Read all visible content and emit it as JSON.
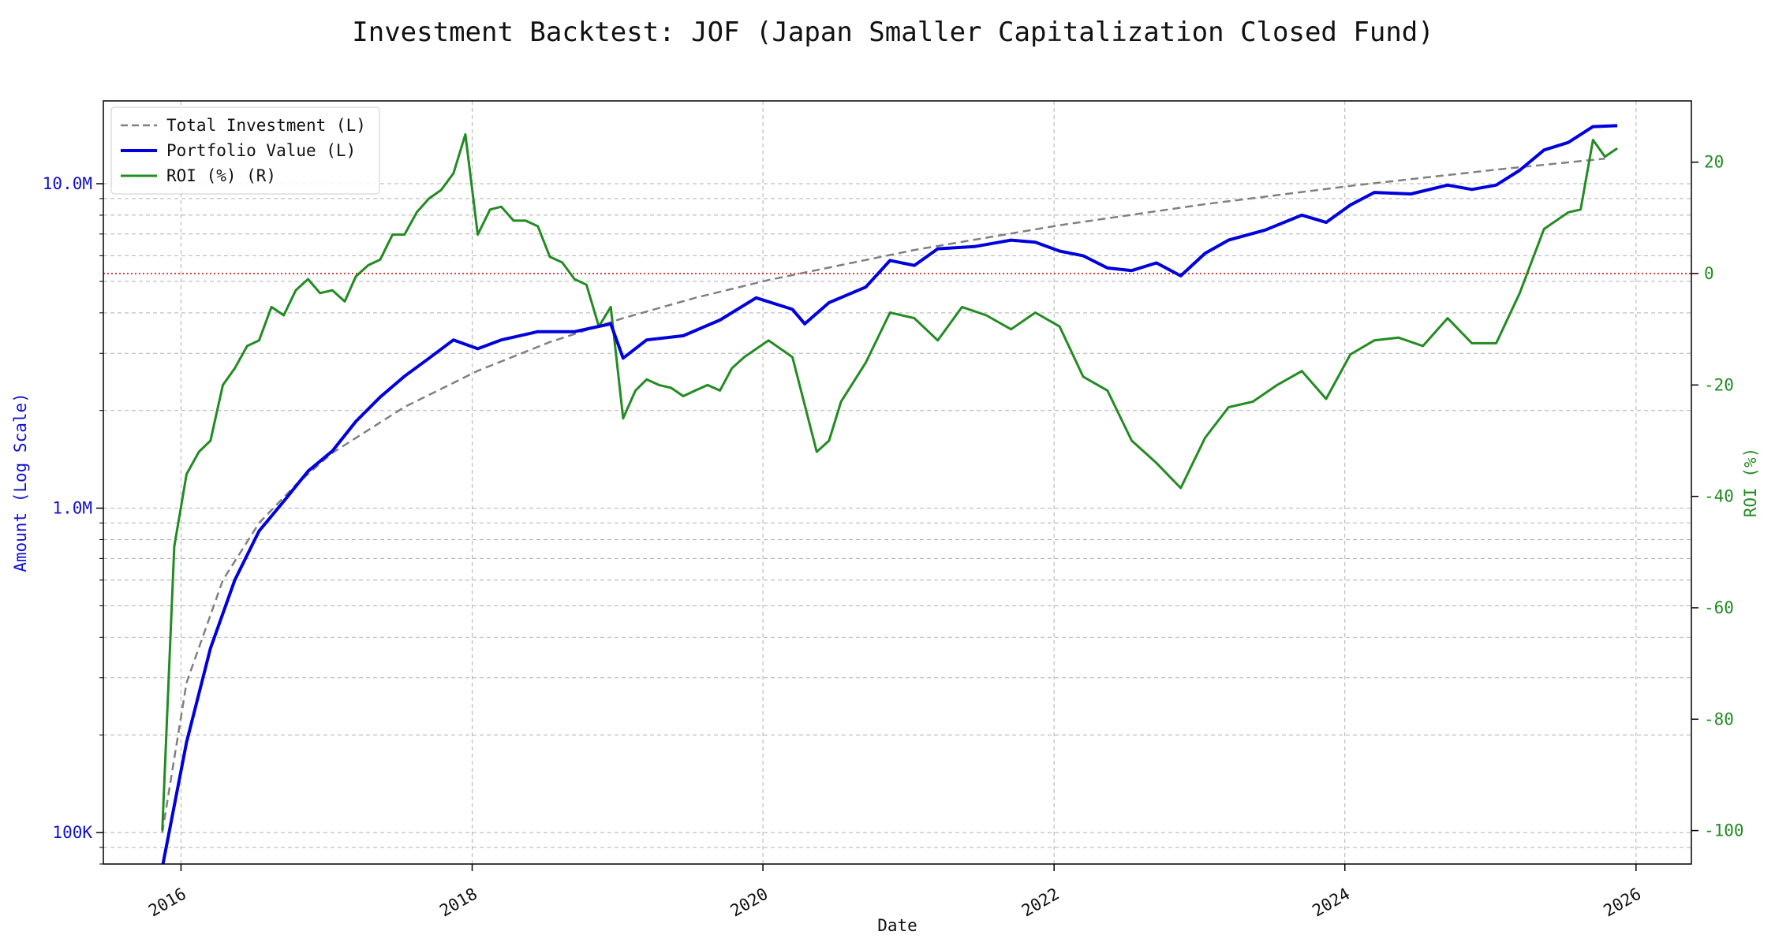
{
  "chart_data": {
    "type": "line",
    "title": "Investment Backtest: JOF (Japan Smaller Capitalization Closed Fund)",
    "xlabel": "Date",
    "ylabel_left": "Amount (Log Scale)",
    "ylabel_right": "ROI (%)",
    "x_axis": {
      "type": "date",
      "range": [
        "2015-06-20",
        "2026-05-20"
      ],
      "ticks": [
        "2016-01-01",
        "2018-01-01",
        "2020-01-01",
        "2022-01-01",
        "2024-01-01",
        "2026-01-01"
      ],
      "tick_labels": [
        "2016",
        "2018",
        "2020",
        "2022",
        "2024",
        "2026"
      ]
    },
    "y_left": {
      "scale": "log",
      "range": [
        80000,
        18000000
      ],
      "ticks": [
        100000,
        1000000,
        10000000
      ],
      "tick_labels": [
        "100K",
        "1.0M",
        "10.0M"
      ]
    },
    "y_right": {
      "scale": "linear",
      "range": [
        -106,
        31
      ],
      "ticks": [
        -100,
        -80,
        -60,
        -40,
        -20,
        0,
        20
      ],
      "tick_labels": [
        "-100",
        "-80",
        "-60",
        "-40",
        "-20",
        "0",
        "20"
      ]
    },
    "zero_reference_line": {
      "axis": "right",
      "value": 0,
      "color": "#cc0000"
    },
    "grid": true,
    "legend_position": "top-left",
    "series": [
      {
        "name": "Total Investment (L)",
        "axis": "left",
        "color": "#808080",
        "style": "dashed",
        "x": [
          "2015-11",
          "2016-01",
          "2016-04",
          "2016-07",
          "2016-10",
          "2017-01",
          "2017-07",
          "2018-01",
          "2018-07",
          "2019-01",
          "2019-07",
          "2020-01",
          "2021-01",
          "2022-01",
          "2023-01",
          "2024-01",
          "2025-01",
          "2025-10"
        ],
        "values": [
          100000,
          290000,
          600000,
          900000,
          1180000,
          1480000,
          2050000,
          2650000,
          3250000,
          3850000,
          4450000,
          5050000,
          6250000,
          7450000,
          8650000,
          9850000,
          11050000,
          11950000
        ]
      },
      {
        "name": "Portfolio Value (L)",
        "axis": "left",
        "color": "#0000dd",
        "style": "solid",
        "x": [
          "2015-11",
          "2016-01",
          "2016-03",
          "2016-05",
          "2016-07",
          "2016-09",
          "2016-11",
          "2017-01",
          "2017-03",
          "2017-05",
          "2017-07",
          "2017-09",
          "2017-11",
          "2018-01",
          "2018-03",
          "2018-06",
          "2018-09",
          "2018-12",
          "2019-01",
          "2019-03",
          "2019-06",
          "2019-09",
          "2019-12",
          "2020-03",
          "2020-04",
          "2020-06",
          "2020-09",
          "2020-11",
          "2021-01",
          "2021-03",
          "2021-06",
          "2021-09",
          "2021-11",
          "2022-01",
          "2022-03",
          "2022-05",
          "2022-07",
          "2022-09",
          "2022-11",
          "2023-01",
          "2023-03",
          "2023-06",
          "2023-09",
          "2023-11",
          "2024-01",
          "2024-03",
          "2024-06",
          "2024-09",
          "2024-11",
          "2025-01",
          "2025-03",
          "2025-05",
          "2025-07",
          "2025-09",
          "2025-11"
        ],
        "values": [
          78000,
          190000,
          370000,
          600000,
          850000,
          1050000,
          1300000,
          1500000,
          1850000,
          2200000,
          2550000,
          2900000,
          3300000,
          3100000,
          3300000,
          3500000,
          3500000,
          3700000,
          2900000,
          3300000,
          3400000,
          3800000,
          4450000,
          4100000,
          3700000,
          4300000,
          4800000,
          5800000,
          5600000,
          6300000,
          6400000,
          6700000,
          6600000,
          6200000,
          6000000,
          5500000,
          5400000,
          5700000,
          5200000,
          6100000,
          6700000,
          7200000,
          8000000,
          7600000,
          8600000,
          9400000,
          9300000,
          9900000,
          9600000,
          9900000,
          11000000,
          12700000,
          13400000,
          15000000,
          15100000
        ]
      },
      {
        "name": "ROI (%) (R)",
        "axis": "right",
        "color": "#228b22",
        "style": "solid",
        "x": [
          "2015-11",
          "2015-12",
          "2016-01",
          "2016-02",
          "2016-03",
          "2016-04",
          "2016-05",
          "2016-06",
          "2016-07",
          "2016-08",
          "2016-09",
          "2016-10",
          "2016-11",
          "2016-12",
          "2017-01",
          "2017-02",
          "2017-03",
          "2017-04",
          "2017-05",
          "2017-06",
          "2017-07",
          "2017-08",
          "2017-09",
          "2017-10",
          "2017-11",
          "2017-12",
          "2018-01",
          "2018-02",
          "2018-03",
          "2018-04",
          "2018-05",
          "2018-06",
          "2018-07",
          "2018-08",
          "2018-09",
          "2018-10",
          "2018-11",
          "2018-12",
          "2019-01",
          "2019-02",
          "2019-03",
          "2019-04",
          "2019-05",
          "2019-06",
          "2019-07",
          "2019-08",
          "2019-09",
          "2019-10",
          "2019-11",
          "2020-01",
          "2020-03",
          "2020-05",
          "2020-06",
          "2020-07",
          "2020-09",
          "2020-11",
          "2021-01",
          "2021-03",
          "2021-05",
          "2021-07",
          "2021-09",
          "2021-11",
          "2022-01",
          "2022-03",
          "2022-05",
          "2022-07",
          "2022-09",
          "2022-11",
          "2023-01",
          "2023-03",
          "2023-05",
          "2023-07",
          "2023-09",
          "2023-11",
          "2024-01",
          "2024-03",
          "2024-05",
          "2024-07",
          "2024-09",
          "2024-11",
          "2025-01",
          "2025-03",
          "2025-05",
          "2025-07",
          "2025-08",
          "2025-09",
          "2025-10",
          "2025-11"
        ],
        "values": [
          -100,
          -49,
          -36,
          -32,
          -30,
          -20,
          -17,
          -13,
          -12,
          -6,
          -7.5,
          -3,
          -1,
          -3.5,
          -3,
          -5,
          -0.5,
          1.5,
          2.5,
          7,
          7,
          11,
          13.5,
          15,
          18,
          25,
          7,
          11.5,
          12,
          9.5,
          9.5,
          8.5,
          3,
          2,
          -1,
          -2,
          -9.5,
          -6,
          -26,
          -21,
          -19,
          -20,
          -20.5,
          -22,
          -21,
          -20,
          -21,
          -17,
          -15,
          -12,
          -15,
          -32,
          -30,
          -23,
          -16,
          -7,
          -8,
          -12,
          -6,
          -7.5,
          -10,
          -7,
          -9.5,
          -18.5,
          -21,
          -30,
          -34,
          -38.5,
          -29.5,
          -24,
          -23,
          -20,
          -17.5,
          -22.5,
          -14.5,
          -12,
          -11.5,
          -13,
          -8,
          -12.5,
          -12.5,
          -3.5,
          8,
          11,
          11.5,
          24,
          21,
          22.5
        ]
      }
    ]
  }
}
